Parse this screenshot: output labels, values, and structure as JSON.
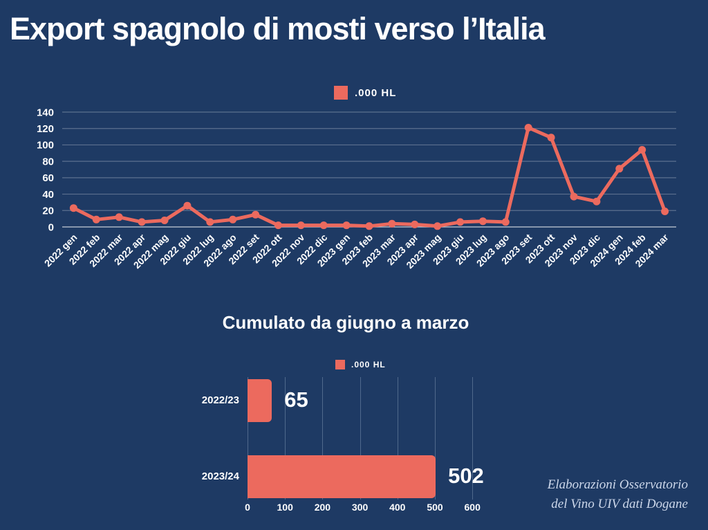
{
  "title": "Export spagnolo di mosti verso l’Italia",
  "colors": {
    "background": "#1e3a64",
    "accent": "#ec6a5e",
    "text": "#ffffff",
    "muted_text": "#ccd7ea",
    "gridline": "rgba(255,255,255,0.28)",
    "baseline": "rgba(255,255,255,0.75)"
  },
  "footer": {
    "line1": "Elaborazioni Osservatorio",
    "line2": "del Vino UIV dati Dogane"
  },
  "chart_data": [
    {
      "type": "line",
      "title": "",
      "legend": ".000 HL",
      "unit": ".000 HL",
      "categories": [
        "2022 gen",
        "2022 feb",
        "2022 mar",
        "2022 apr",
        "2022 mag",
        "2022 giu",
        "2022 lug",
        "2022 ago",
        "2022 set",
        "2022 ott",
        "2022 nov",
        "2022 dic",
        "2023 gen",
        "2023 feb",
        "2023 mar",
        "2023 apr",
        "2023 mag",
        "2023 giu",
        "2023 lug",
        "2023 ago",
        "2023 set",
        "2023 ott",
        "2023 nov",
        "2023 dic",
        "2024 gen",
        "2024 feb",
        "2024 mar"
      ],
      "values": [
        23,
        9,
        12,
        6,
        8,
        26,
        6,
        9,
        15,
        2,
        2,
        2,
        2,
        1,
        4,
        3,
        1,
        6,
        7,
        6,
        121,
        109,
        37,
        31,
        71,
        94,
        19
      ],
      "ylim": [
        0,
        140
      ],
      "yticks": [
        0,
        20,
        40,
        60,
        80,
        100,
        120,
        140
      ],
      "grid": "horizontal",
      "legend_position": "top-center",
      "x_label_rotation": -45
    },
    {
      "type": "bar",
      "orientation": "horizontal",
      "title": "Cumulato da giugno a marzo",
      "legend": ".000 HL",
      "unit": ".000 HL",
      "categories": [
        "2022/23",
        "2023/24"
      ],
      "values": [
        65,
        502
      ],
      "data_labels": [
        "65",
        "502"
      ],
      "xlim": [
        0,
        600
      ],
      "xticks": [
        0,
        100,
        200,
        300,
        400,
        500,
        600
      ],
      "grid": "vertical",
      "legend_position": "top-center"
    }
  ]
}
